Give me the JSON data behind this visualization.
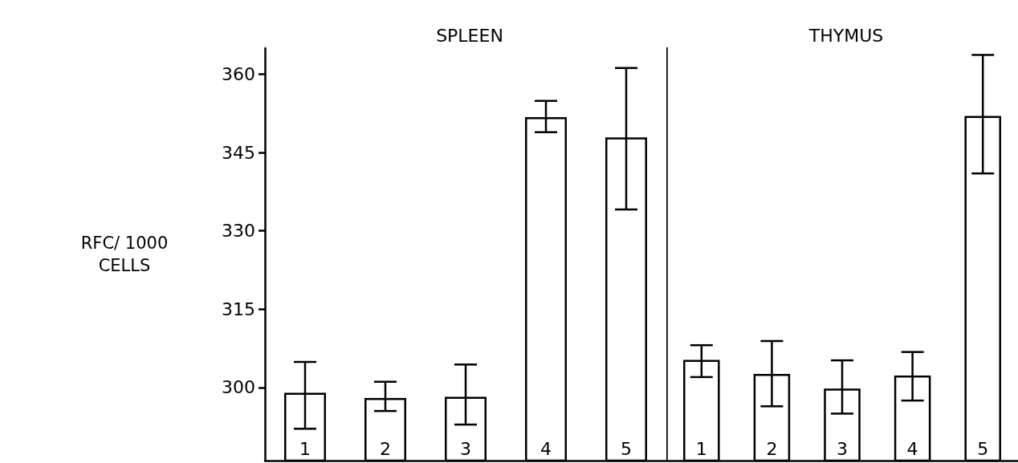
{
  "chart_data": [
    {
      "type": "bar",
      "title": "SPLEEN",
      "ylabel": "RFC/ 1000 CELLS",
      "categories": [
        "1",
        "2",
        "3",
        "4",
        "5"
      ],
      "series": [
        {
          "color": "#ffffff",
          "values": [
            299,
            298,
            298.2,
            351.8,
            347.9
          ],
          "errors": [
            [
              292.1,
              304.9
            ],
            [
              295.5,
              301.1
            ],
            [
              292.9,
              304.4
            ],
            [
              348.9,
              354.9
            ],
            [
              334.1,
              361.2
            ]
          ]
        }
      ],
      "ylim": [
        286,
        365
      ],
      "yticks": [
        300,
        315,
        330,
        345,
        360
      ]
    },
    {
      "type": "bar",
      "title": "THYMUS",
      "categories": [
        "1",
        "2",
        "3",
        "4",
        "5"
      ],
      "series": [
        {
          "color": "#ffffff",
          "values": [
            305.3,
            302.6,
            299.8,
            302.3,
            352
          ],
          "errors": [
            [
              302,
              308.1
            ],
            [
              296.4,
              308.9
            ],
            [
              295,
              305.2
            ],
            [
              297.5,
              306.8
            ],
            [
              341,
              363.7
            ]
          ]
        }
      ],
      "ylim": [
        286,
        365
      ],
      "yticks": [
        300,
        315,
        330,
        345,
        360
      ],
      "tick_labels": "x"
    }
  ]
}
